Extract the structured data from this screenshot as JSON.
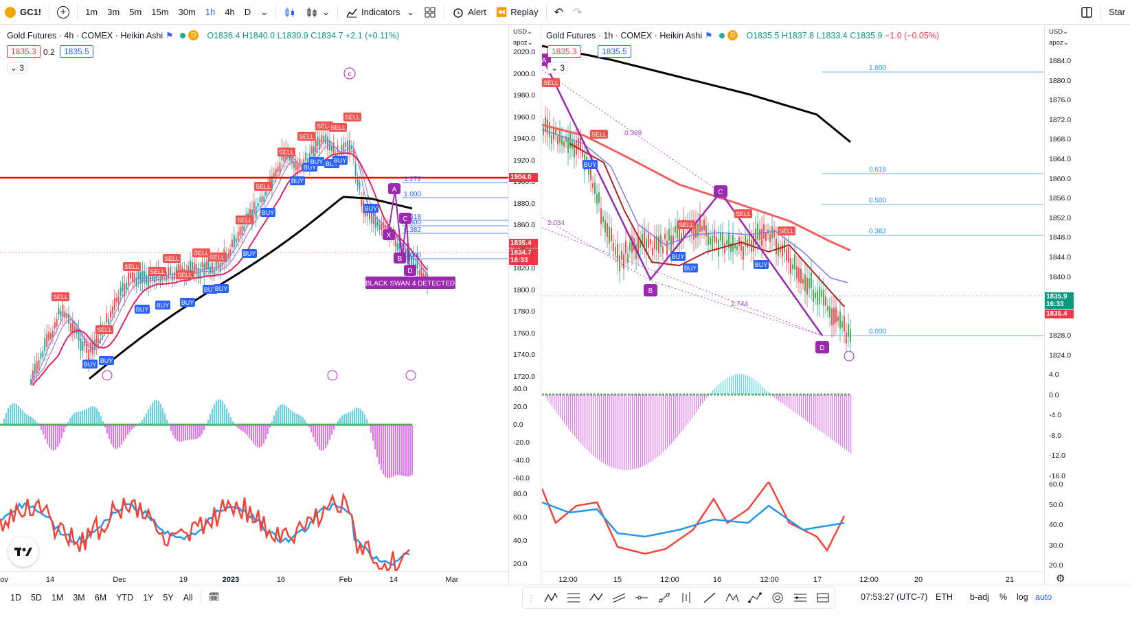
{
  "toolbar": {
    "symbol": "GC1!",
    "add_symbol": "+",
    "intervals": [
      "1m",
      "3m",
      "5m",
      "15m",
      "30m",
      "1h",
      "4h",
      "D"
    ],
    "active_interval": "1h",
    "indicators_label": "Indicators",
    "alert_label": "Alert",
    "replay_label": "Replay",
    "star_label": "Star"
  },
  "left_chart": {
    "title": "Gold Futures · 4h · COMEX · Heikin Ashi",
    "o": "O1836.4",
    "h": "H1840.0",
    "l": "L1830.9",
    "c": "C1834.7",
    "change": "+2.1 (+0.11%)",
    "sell_price": "1835.3",
    "qty": "0.2",
    "buy_price": "1835.5",
    "collapse": "3",
    "wave_c": "c",
    "black_swan": "BLACK SWAN 4 DETECTED",
    "fib_levels": [
      "1.272",
      "1.000",
      "0.618",
      "0.500",
      "0.382",
      "0.000"
    ],
    "pattern_points": [
      "A",
      "C",
      "X",
      "B",
      "D"
    ],
    "axis_currency": "USD",
    "axis_mode": "apoz",
    "price_ticks": [
      "2020.0",
      "2000.0",
      "1980.0",
      "1960.0",
      "1940.0",
      "1920.0",
      "1900.0",
      "1880.0",
      "1860.0",
      "1840.0",
      "1820.0",
      "1800.0",
      "1780.0",
      "1760.0",
      "1740.0",
      "1720.0"
    ],
    "hline_label": "1904.0",
    "current_label": "1835.4",
    "last_label": "1834.7",
    "countdown": "16:33",
    "macd_ticks": [
      "40.0",
      "20.0",
      "0.0",
      "-20.0",
      "-40.0",
      "-60.0"
    ],
    "rsi_ticks": [
      "80.0",
      "60.0",
      "40.0",
      "20.0"
    ],
    "x_labels": [
      "ov",
      "14",
      "Dec",
      "19",
      "2023",
      "16",
      "Feb",
      "14",
      "Mar"
    ]
  },
  "right_chart": {
    "title": "Gold Futures · 1h · COMEX · Heikin Ashi",
    "o": "O1835.5",
    "h": "H1837.8",
    "l": "L1833.4",
    "c": "C1835.9",
    "change": "−1.0 (−0.05%)",
    "sell_price": "1835.3",
    "buy_price": "1835.5",
    "collapse": "3",
    "fib_levels": [
      "1.000",
      "0.618",
      "0.500",
      "0.382",
      "0.000"
    ],
    "ratio_labels": [
      "0.369",
      "2.034",
      "1.744"
    ],
    "pattern_points": [
      "A",
      "B",
      "C",
      "D"
    ],
    "axis_currency": "USD",
    "axis_mode": "apoz",
    "price_ticks": [
      "1884.0",
      "1880.0",
      "1876.0",
      "1872.0",
      "1868.0",
      "1864.0",
      "1860.0",
      "1856.0",
      "1852.0",
      "1848.0",
      "1844.0",
      "1840.0",
      "1836.0",
      "1832.0",
      "1828.0",
      "1824.0"
    ],
    "current_label": "1835.9",
    "countdown": "16:33",
    "bid_label": "1835.4",
    "macd_ticks": [
      "4.0",
      "0.0",
      "-4.0",
      "-8.0",
      "-12.0",
      "-16.0"
    ],
    "rsi_ticks": [
      "60.0",
      "50.0",
      "40.0",
      "30.0",
      "20.0"
    ],
    "x_labels": [
      "12:00",
      "15",
      "12:00",
      "16",
      "12:00",
      "17",
      "12:00",
      "20",
      "21"
    ]
  },
  "bottom_bar": {
    "ranges": [
      "1D",
      "5D",
      "1M",
      "3M",
      "6M",
      "YTD",
      "1Y",
      "5Y",
      "All"
    ],
    "time": "07:53:27 (UTC-7)",
    "session": "ETH",
    "adj": "b-adj",
    "percent": "%",
    "log": "log",
    "auto": "auto"
  },
  "signal_labels": {
    "sell": "SELL",
    "buy": "BUY"
  },
  "colors": {
    "accent": "#2962ff",
    "sell": "#f23645",
    "buy": "#2962ff",
    "pattern": "#9c27b0",
    "bull": "#089981",
    "hline": "#ff0000"
  }
}
